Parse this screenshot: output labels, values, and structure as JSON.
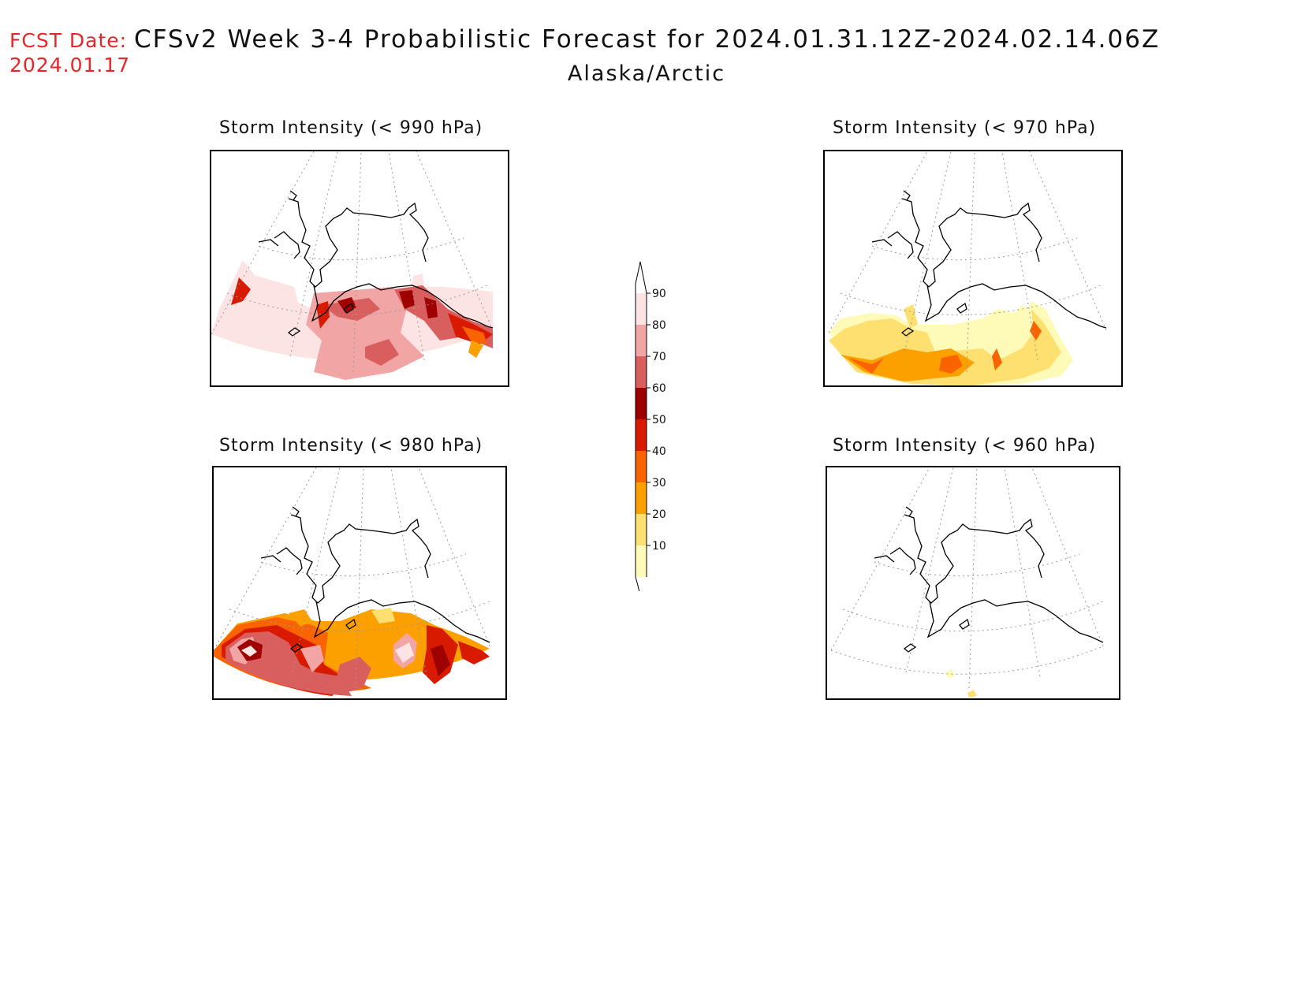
{
  "header": {
    "fcst_label": "FCST Date:",
    "fcst_date": "2024.01.17",
    "title": "CFSv2 Week 3-4 Probabilistic Forecast for 2024.01.31.12Z-2024.02.14.06Z",
    "region": "Alaska/Arctic"
  },
  "panels": [
    {
      "title": "Storm Intensity (< 990 hPa)"
    },
    {
      "title": "Storm Intensity (< 970 hPa)"
    },
    {
      "title": "Storm Intensity (< 980 hPa)"
    },
    {
      "title": "Storm Intensity (< 960 hPa)"
    }
  ],
  "legend": {
    "labels": [
      "90",
      "80",
      "70",
      "60",
      "50",
      "40",
      "30",
      "20",
      "10"
    ],
    "colors": [
      "#fce4e4",
      "#f2a5a5",
      "#d95f5f",
      "#9e0000",
      "#d81a00",
      "#fa6400",
      "#fca000",
      "#fde070",
      "#fefab8"
    ]
  }
}
